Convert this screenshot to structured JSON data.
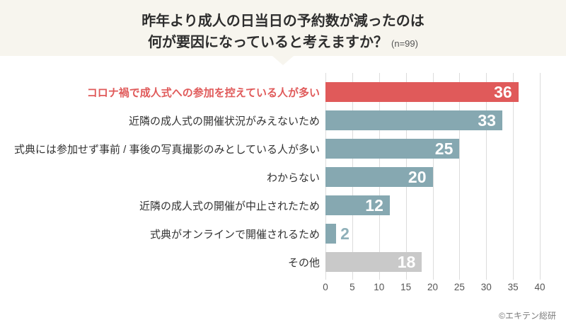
{
  "header": {
    "title_line1": "昨年より成人の日当日の予約数が減ったのは",
    "title_line2": "何が要因になっていると考えますか？",
    "sample_note": "(n=99)"
  },
  "chart_data": {
    "type": "bar",
    "orientation": "horizontal",
    "title": "昨年より成人の日当日の予約数が減ったのは何が要因になっていると考えますか？",
    "sample_size": "n=99",
    "categories": [
      "コロナ禍で成人式への参加を控えている人が多い",
      "近隣の成人式の開催状況がみえないため",
      "式典には参加せず事前 / 事後の写真撮影のみとしている人が多い",
      "わからない",
      "近隣の成人式の開催が中止されたため",
      "式典がオンラインで開催されるため",
      "その他"
    ],
    "values": [
      36,
      33,
      25,
      20,
      12,
      2,
      18
    ],
    "bar_colors": [
      "#e05a5a",
      "#86a8b1",
      "#86a8b1",
      "#86a8b1",
      "#86a8b1",
      "#86a8b1",
      "#c9c9c9"
    ],
    "highlight_index": 0,
    "x_ticks": [
      0,
      5,
      10,
      15,
      20,
      25,
      30,
      35,
      40
    ],
    "xlim": [
      0,
      40
    ],
    "grid": true,
    "legend": false
  },
  "footer": {
    "copyright": "©エキテン総研"
  },
  "colors": {
    "accent_red": "#e05a5a",
    "bar_teal": "#86a8b1",
    "bar_gray": "#c9c9c9",
    "header_bg": "#f7f5ee",
    "gridline": "#dcdcdc",
    "value_text": "#ffffff",
    "outside_value_text": "#8fb0b9"
  }
}
